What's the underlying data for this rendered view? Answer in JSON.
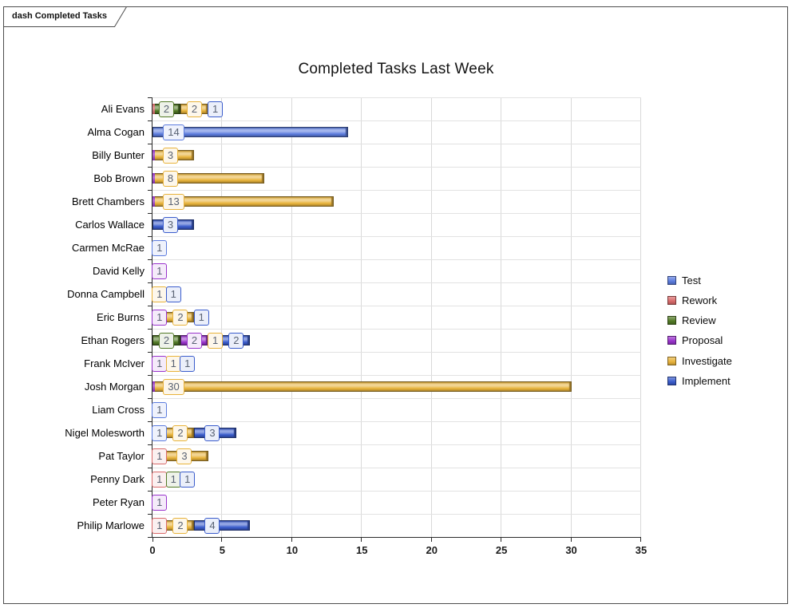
{
  "window": {
    "tab_label": "dash Completed Tasks"
  },
  "chart_data": {
    "type": "bar",
    "orientation": "horizontal",
    "stacked": true,
    "title": "Completed Tasks Last Week",
    "xlabel": "",
    "ylabel": "",
    "xlim": [
      0,
      35
    ],
    "x_ticks": [
      0,
      5,
      10,
      15,
      20,
      25,
      30,
      35
    ],
    "grid": true,
    "legend_position": "right",
    "series": [
      {
        "key": "Test",
        "label": "Test",
        "color": "#5C7CDE"
      },
      {
        "key": "Rework",
        "label": "Rework",
        "color": "#D96A6A"
      },
      {
        "key": "Review",
        "label": "Review",
        "color": "#527A26"
      },
      {
        "key": "Proposal",
        "label": "Proposal",
        "color": "#9933CC"
      },
      {
        "key": "Investigate",
        "label": "Investigate",
        "color": "#E8B33B"
      },
      {
        "key": "Implement",
        "label": "Implement",
        "color": "#3A5CCC"
      }
    ],
    "rows": [
      {
        "name": "Ali Evans",
        "segments": [
          {
            "series": "Review",
            "value": 2
          },
          {
            "series": "Investigate",
            "value": 2
          },
          {
            "series": "Implement",
            "value": 1
          }
        ],
        "zero_sliver": "Rework"
      },
      {
        "name": "Alma Cogan",
        "segments": [
          {
            "series": "Test",
            "value": 14
          }
        ]
      },
      {
        "name": "Billy Bunter",
        "segments": [
          {
            "series": "Investigate",
            "value": 3
          }
        ],
        "zero_sliver": "Proposal"
      },
      {
        "name": "Bob Brown",
        "segments": [
          {
            "series": "Investigate",
            "value": 8
          }
        ],
        "zero_sliver": "Proposal"
      },
      {
        "name": "Brett Chambers",
        "segments": [
          {
            "series": "Investigate",
            "value": 13
          }
        ],
        "zero_sliver": "Proposal"
      },
      {
        "name": "Carlos Wallace",
        "segments": [
          {
            "series": "Implement",
            "value": 3
          }
        ]
      },
      {
        "name": "Carmen McRae",
        "segments": [
          {
            "series": "Test",
            "value": 1
          }
        ]
      },
      {
        "name": "David Kelly",
        "segments": [
          {
            "series": "Proposal",
            "value": 1
          }
        ]
      },
      {
        "name": "Donna Campbell",
        "segments": [
          {
            "series": "Investigate",
            "value": 1
          },
          {
            "series": "Implement",
            "value": 1
          }
        ]
      },
      {
        "name": "Eric Burns",
        "segments": [
          {
            "series": "Proposal",
            "value": 1
          },
          {
            "series": "Investigate",
            "value": 2
          },
          {
            "series": "Implement",
            "value": 1
          }
        ]
      },
      {
        "name": "Ethan Rogers",
        "segments": [
          {
            "series": "Review",
            "value": 2
          },
          {
            "series": "Proposal",
            "value": 2
          },
          {
            "series": "Investigate",
            "value": 1
          },
          {
            "series": "Implement",
            "value": 2
          }
        ]
      },
      {
        "name": "Frank McIver",
        "segments": [
          {
            "series": "Proposal",
            "value": 1
          },
          {
            "series": "Investigate",
            "value": 1
          },
          {
            "series": "Implement",
            "value": 1
          }
        ]
      },
      {
        "name": "Josh Morgan",
        "segments": [
          {
            "series": "Investigate",
            "value": 30
          }
        ],
        "zero_sliver": "Proposal"
      },
      {
        "name": "Liam Cross",
        "segments": [
          {
            "series": "Test",
            "value": 1
          }
        ]
      },
      {
        "name": "Nigel Molesworth",
        "segments": [
          {
            "series": "Test",
            "value": 1
          },
          {
            "series": "Investigate",
            "value": 2
          },
          {
            "series": "Implement",
            "value": 3
          }
        ]
      },
      {
        "name": "Pat Taylor",
        "segments": [
          {
            "series": "Rework",
            "value": 1
          },
          {
            "series": "Investigate",
            "value": 3
          }
        ]
      },
      {
        "name": "Penny Dark",
        "segments": [
          {
            "series": "Rework",
            "value": 1
          },
          {
            "series": "Review",
            "value": 1
          },
          {
            "series": "Implement",
            "value": 1
          }
        ]
      },
      {
        "name": "Peter Ryan",
        "segments": [
          {
            "series": "Proposal",
            "value": 1
          }
        ]
      },
      {
        "name": "Philip Marlowe",
        "segments": [
          {
            "series": "Rework",
            "value": 1
          },
          {
            "series": "Investigate",
            "value": 2
          },
          {
            "series": "Implement",
            "value": 4
          }
        ]
      }
    ]
  }
}
